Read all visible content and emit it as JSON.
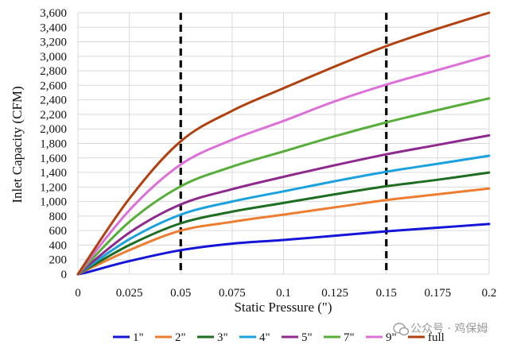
{
  "chart_data": {
    "type": "line",
    "xlabel": "Static Pressure (\")",
    "ylabel": "Inlet Capacity (CFM)",
    "xlim": [
      0,
      0.2
    ],
    "ylim": [
      0,
      3600
    ],
    "x_ticks": [
      0,
      0.025,
      0.05,
      0.075,
      0.1,
      0.125,
      0.15,
      0.175,
      0.2
    ],
    "x_tick_labels": [
      "0",
      "0.025",
      "0.05",
      "0.075",
      "0.1",
      "0.125",
      "0.15",
      "0.175",
      "0.2"
    ],
    "y_ticks": [
      0,
      200,
      400,
      600,
      800,
      1000,
      1200,
      1400,
      1600,
      1800,
      2000,
      2200,
      2400,
      2600,
      2800,
      3000,
      3200,
      3400,
      3600
    ],
    "y_tick_labels": [
      "0",
      "200",
      "400",
      "600",
      "800",
      "1,000",
      "1,200",
      "1,400",
      "1,600",
      "1,800",
      "2,000",
      "2,200",
      "2,400",
      "2,600",
      "2,800",
      "3,000",
      "3,200",
      "3,400",
      "3,600"
    ],
    "grid": true,
    "legend_position": "bottom",
    "reference_lines_x": [
      0.05,
      0.15
    ],
    "series": [
      {
        "name": "1\"",
        "color": "#1515d8",
        "x": [
          0,
          0.005,
          0.025,
          0.05,
          0.075,
          0.1,
          0.125,
          0.15,
          0.175,
          0.2
        ],
        "y": [
          0,
          30,
          180,
          330,
          420,
          470,
          530,
          590,
          640,
          690
        ]
      },
      {
        "name": "2\"",
        "color": "#ed7d31",
        "x": [
          0,
          0.025,
          0.05,
          0.075,
          0.1,
          0.125,
          0.15,
          0.175,
          0.2
        ],
        "y": [
          0,
          330,
          600,
          720,
          820,
          920,
          1020,
          1100,
          1180
        ]
      },
      {
        "name": "3\"",
        "color": "#1e6e22",
        "x": [
          0,
          0.025,
          0.05,
          0.075,
          0.1,
          0.125,
          0.15,
          0.175,
          0.2
        ],
        "y": [
          0,
          400,
          700,
          860,
          980,
          1100,
          1210,
          1300,
          1400
        ]
      },
      {
        "name": "4\"",
        "color": "#1ba1dd",
        "x": [
          0,
          0.025,
          0.05,
          0.075,
          0.1,
          0.125,
          0.15,
          0.175,
          0.2
        ],
        "y": [
          0,
          480,
          820,
          1000,
          1140,
          1280,
          1410,
          1520,
          1630
        ]
      },
      {
        "name": "5\"",
        "color": "#8e2a8e",
        "x": [
          0,
          0.025,
          0.05,
          0.075,
          0.1,
          0.125,
          0.15,
          0.175,
          0.2
        ],
        "y": [
          0,
          570,
          960,
          1170,
          1340,
          1500,
          1650,
          1780,
          1910
        ]
      },
      {
        "name": "7\"",
        "color": "#58ae3a",
        "x": [
          0,
          0.025,
          0.05,
          0.075,
          0.1,
          0.125,
          0.15,
          0.175,
          0.2
        ],
        "y": [
          0,
          720,
          1210,
          1480,
          1690,
          1900,
          2090,
          2260,
          2420
        ]
      },
      {
        "name": "9\"",
        "color": "#dd6fd8",
        "x": [
          0,
          0.025,
          0.05,
          0.075,
          0.1,
          0.125,
          0.15,
          0.175,
          0.2
        ],
        "y": [
          0,
          880,
          1510,
          1850,
          2110,
          2380,
          2610,
          2810,
          3010
        ]
      },
      {
        "name": "full",
        "color": "#b1410f",
        "x": [
          0,
          0.025,
          0.05,
          0.075,
          0.1,
          0.125,
          0.15,
          0.175,
          0.2
        ],
        "y": [
          0,
          1040,
          1830,
          2250,
          2560,
          2860,
          3140,
          3380,
          3610
        ]
      }
    ]
  },
  "watermark": {
    "icon": "wechat-icon",
    "text": "公众号 · 鸡保姆"
  },
  "colors": {
    "grid": "#d9d9d9",
    "reference_line": "#000000"
  }
}
